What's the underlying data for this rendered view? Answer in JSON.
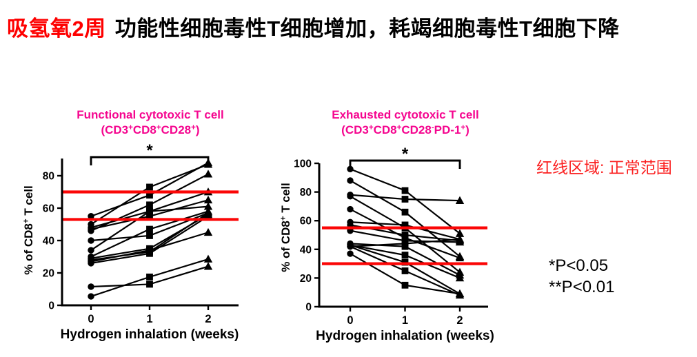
{
  "page_title": {
    "red": "吸氢氧2周",
    "black": "功能性细胞毒性T细胞增加，耗竭细胞毒性T细胞下降"
  },
  "annotations": {
    "normal_range_note": "红线区域: 正常范围",
    "p1": "*P<0.05",
    "p2": "**P<0.01"
  },
  "colors": {
    "red": "#fb0606",
    "magenta": "#f5058f",
    "black": "#000000"
  },
  "chart_data": [
    {
      "type": "line",
      "title": "Functional cytotoxic T cell",
      "subtitle": "(CD3^+^CD8^+^CD28^+^)",
      "xlabel": "Hydrogen inhalation (weeks)",
      "ylabel": "% of CD8^+^ T cell",
      "x": [
        0,
        1,
        2
      ],
      "xticks": [
        "0",
        "1",
        "2"
      ],
      "yticks": [
        0,
        20,
        40,
        60,
        80
      ],
      "ylim": [
        0,
        93
      ],
      "grid": false,
      "legend": "none",
      "markers_by_week": [
        "circle",
        "square",
        "triangle"
      ],
      "normal_range_lines": [
        53,
        70
      ],
      "significance": {
        "from": 0,
        "to": 2,
        "label": "*"
      },
      "series": [
        [
          55,
          68,
          88
        ],
        [
          50,
          73,
          87
        ],
        [
          48,
          58,
          70
        ],
        [
          47,
          55,
          65
        ],
        [
          46,
          62,
          81
        ],
        [
          40,
          43,
          57
        ],
        [
          34,
          58,
          61
        ],
        [
          30,
          47,
          58
        ],
        [
          29,
          35,
          56
        ],
        [
          28,
          33,
          57
        ],
        [
          27,
          34,
          45
        ],
        [
          26,
          32,
          55
        ],
        [
          11.5,
          13,
          24
        ],
        [
          5.5,
          17.5,
          28.5
        ]
      ]
    },
    {
      "type": "line",
      "title": "Exhausted cytotoxic T cell",
      "subtitle": "(CD3^+^CD8^+^CD28^-^PD-1^+^)",
      "xlabel": "Hydrogen inhalation (weeks)",
      "ylabel": "% of CD8^+^ T cell",
      "x": [
        0,
        1,
        2
      ],
      "xticks": [
        "0",
        "1",
        "2"
      ],
      "yticks": [
        0,
        20,
        40,
        60,
        80,
        100
      ],
      "ylim": [
        0,
        100
      ],
      "grid": false,
      "legend": "none",
      "markers_by_week": [
        "circle",
        "square",
        "triangle"
      ],
      "normal_range_lines": [
        30,
        55
      ],
      "significance": {
        "from": 0,
        "to": 2,
        "label": "*"
      },
      "series": [
        [
          96,
          81,
          51
        ],
        [
          88,
          66,
          35
        ],
        [
          78,
          75,
          74
        ],
        [
          77,
          55,
          24
        ],
        [
          68,
          48,
          34
        ],
        [
          59,
          57,
          47
        ],
        [
          57,
          50,
          46
        ],
        [
          53,
          46,
          45
        ],
        [
          44,
          42,
          22
        ],
        [
          43,
          36,
          20
        ],
        [
          43,
          31,
          9
        ],
        [
          42,
          44,
          47
        ],
        [
          42,
          25,
          8
        ],
        [
          37,
          15,
          9
        ]
      ]
    }
  ]
}
